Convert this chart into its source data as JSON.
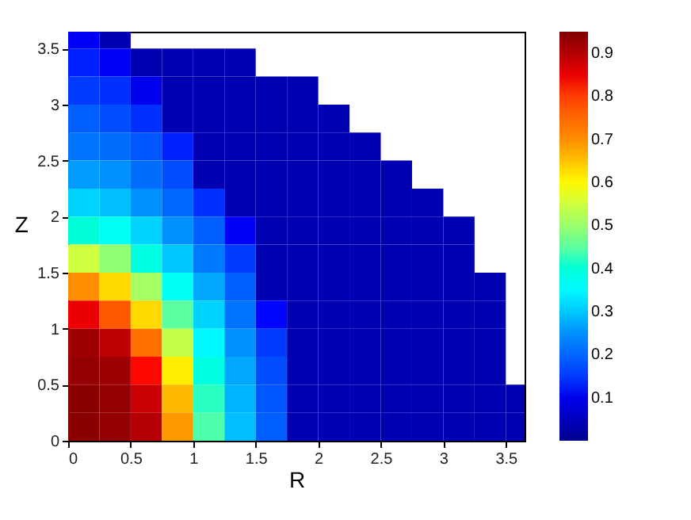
{
  "chart_data": {
    "type": "heatmap",
    "xlabel": "R",
    "ylabel": "Z",
    "x": [
      0.125,
      0.375,
      0.625,
      0.875,
      1.125,
      1.375,
      1.625,
      1.875,
      2.125,
      2.375,
      2.625,
      2.875,
      3.125,
      3.375,
      3.625
    ],
    "y": [
      3.625,
      3.375,
      3.125,
      2.875,
      2.625,
      2.375,
      2.125,
      1.875,
      1.625,
      1.375,
      1.125,
      0.875,
      0.625,
      0.375,
      0.125
    ],
    "xlim": [
      0,
      3.65
    ],
    "ylim": [
      0,
      3.65
    ],
    "xticks": [
      0,
      0.5,
      1,
      1.5,
      2,
      2.5,
      3,
      3.5
    ],
    "yticks": [
      0,
      0.5,
      1,
      1.5,
      2,
      2.5,
      3,
      3.5
    ],
    "clim": [
      0,
      0.95
    ],
    "cticks": [
      0.1,
      0.2,
      0.3,
      0.4,
      0.5,
      0.6,
      0.7,
      0.8,
      0.9
    ],
    "cells": [
      [
        0.11,
        0.04,
        null,
        null,
        null,
        null,
        null,
        null,
        null,
        null,
        null,
        null,
        null,
        null,
        null
      ],
      [
        0.13,
        0.11,
        0.04,
        0.04,
        0.04,
        0.04,
        null,
        null,
        null,
        null,
        null,
        null,
        null,
        null,
        null
      ],
      [
        0.15,
        0.14,
        0.1,
        0.04,
        0.04,
        0.04,
        0.04,
        0.04,
        null,
        null,
        null,
        null,
        null,
        null,
        null
      ],
      [
        0.19,
        0.17,
        0.14,
        0.04,
        0.04,
        0.04,
        0.04,
        0.04,
        0.04,
        null,
        null,
        null,
        null,
        null,
        null
      ],
      [
        0.22,
        0.21,
        0.18,
        0.13,
        0.04,
        0.04,
        0.04,
        0.04,
        0.04,
        0.04,
        null,
        null,
        null,
        null,
        null
      ],
      [
        0.26,
        0.25,
        0.21,
        0.17,
        0.04,
        0.04,
        0.04,
        0.04,
        0.04,
        0.04,
        0.04,
        null,
        null,
        null,
        null
      ],
      [
        0.31,
        0.29,
        0.25,
        0.2,
        0.14,
        0.04,
        0.04,
        0.04,
        0.04,
        0.04,
        0.04,
        0.04,
        null,
        null,
        null
      ],
      [
        0.4,
        0.37,
        0.31,
        0.25,
        0.19,
        0.11,
        0.04,
        0.04,
        0.04,
        0.04,
        0.04,
        0.04,
        0.04,
        null,
        null
      ],
      [
        0.55,
        0.49,
        0.39,
        0.3,
        0.23,
        0.15,
        0.04,
        0.04,
        0.04,
        0.04,
        0.04,
        0.04,
        0.04,
        null,
        null
      ],
      [
        0.7,
        0.63,
        0.51,
        0.37,
        0.27,
        0.19,
        0.04,
        0.04,
        0.04,
        0.04,
        0.04,
        0.04,
        0.04,
        0.04,
        null
      ],
      [
        0.85,
        0.77,
        0.63,
        0.45,
        0.31,
        0.22,
        0.12,
        0.04,
        0.04,
        0.04,
        0.04,
        0.04,
        0.04,
        0.04,
        null
      ],
      [
        0.92,
        0.89,
        0.74,
        0.54,
        0.35,
        0.25,
        0.15,
        0.04,
        0.04,
        0.04,
        0.04,
        0.04,
        0.04,
        0.04,
        null
      ],
      [
        0.93,
        0.92,
        0.83,
        0.61,
        0.39,
        0.27,
        0.17,
        0.04,
        0.04,
        0.04,
        0.04,
        0.04,
        0.04,
        0.04,
        null
      ],
      [
        0.94,
        0.93,
        0.88,
        0.66,
        0.42,
        0.28,
        0.18,
        0.04,
        0.04,
        0.04,
        0.04,
        0.04,
        0.04,
        0.04,
        0.04
      ],
      [
        0.94,
        0.93,
        0.9,
        0.69,
        0.44,
        0.29,
        0.19,
        0.04,
        0.04,
        0.04,
        0.04,
        0.04,
        0.04,
        0.04,
        0.04
      ]
    ]
  }
}
